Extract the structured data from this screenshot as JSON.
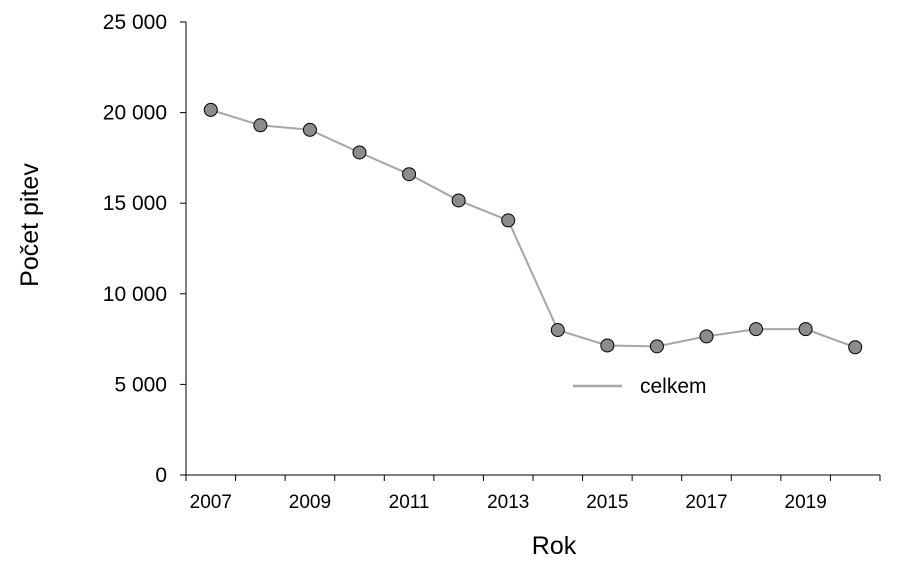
{
  "chart_data": {
    "type": "line",
    "title": "",
    "xlabel": "Rok",
    "ylabel": "Počet pitev",
    "x": [
      2007,
      2008,
      2009,
      2010,
      2011,
      2012,
      2013,
      2014,
      2015,
      2016,
      2017,
      2018,
      2019,
      2020
    ],
    "series": [
      {
        "name": "celkem",
        "values": [
          20150,
          19300,
          19050,
          17800,
          16600,
          15150,
          14050,
          8000,
          7150,
          7100,
          7650,
          8050,
          8050,
          7050
        ],
        "color": "#a6a6a6",
        "marker_fill": "#8c8c8c",
        "marker_stroke": "#000000"
      }
    ],
    "ylim": [
      0,
      25000
    ],
    "xlim": [
      2006.5,
      2020.5
    ],
    "yticks": [
      0,
      5000,
      10000,
      15000,
      20000,
      25000
    ],
    "ytick_labels": [
      "0",
      "5 000",
      "10 000",
      "15 000",
      "20 000",
      "25 000"
    ],
    "xticks": [
      2007,
      2009,
      2011,
      2013,
      2015,
      2017,
      2019
    ],
    "xtick_labels": [
      "2007",
      "2009",
      "2011",
      "2013",
      "2015",
      "2017",
      "2019"
    ],
    "grid": false,
    "legend_position": "lower-right"
  }
}
